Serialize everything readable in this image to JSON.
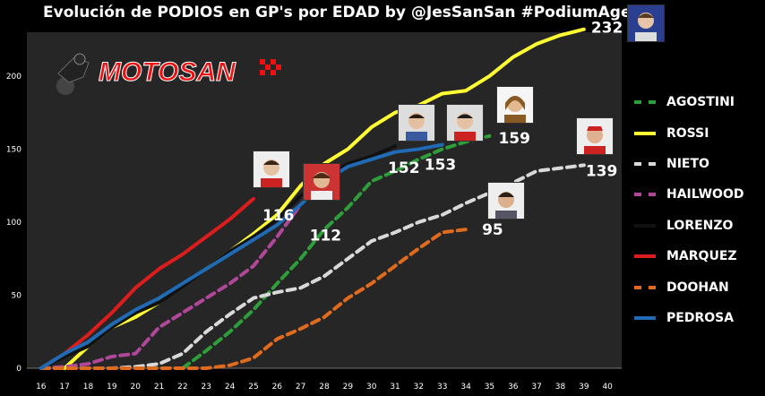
{
  "title": "Evolución de PODIOS en GP's por EDAD by @JesSanSan #PodiumAge",
  "logo_text": "MOTOSAN",
  "chart_data": {
    "type": "line",
    "title": "Evolución de PODIOS en GP's por EDAD by @JesSanSan #PodiumAge",
    "xlabel": "",
    "ylabel": "",
    "x": [
      16,
      17,
      18,
      19,
      20,
      21,
      22,
      23,
      24,
      25,
      26,
      27,
      28,
      29,
      30,
      31,
      32,
      33,
      34,
      35,
      36,
      37,
      38,
      39,
      40
    ],
    "xlim": [
      16,
      40
    ],
    "ylim": [
      0,
      230
    ],
    "yticks": [
      0,
      50,
      100,
      150,
      200
    ],
    "grid": false,
    "legend_position": "right",
    "series": [
      {
        "name": "AGOSTINI",
        "color": "#2e9e3b",
        "dashed": true,
        "x": [
          22,
          23,
          24,
          25,
          26,
          27,
          28,
          29,
          30,
          31,
          32,
          33,
          34,
          35
        ],
        "y": [
          0,
          12,
          25,
          40,
          58,
          75,
          95,
          110,
          128,
          135,
          143,
          150,
          155,
          159
        ]
      },
      {
        "name": "ROSSI",
        "color": "#ffff33",
        "dashed": false,
        "x": [
          17,
          18,
          19,
          20,
          21,
          22,
          23,
          24,
          25,
          26,
          27,
          28,
          29,
          30,
          31,
          32,
          33,
          34,
          35,
          36,
          37,
          38,
          39
        ],
        "y": [
          0,
          15,
          28,
          35,
          45,
          57,
          68,
          80,
          92,
          105,
          125,
          140,
          150,
          165,
          175,
          180,
          188,
          190,
          200,
          213,
          222,
          228,
          232
        ]
      },
      {
        "name": "NIETO",
        "color": "#d9d9d9",
        "dashed": true,
        "x": [
          16,
          17,
          18,
          19,
          20,
          21,
          22,
          23,
          24,
          25,
          26,
          27,
          28,
          29,
          30,
          31,
          32,
          33,
          34,
          35,
          36,
          37,
          38,
          39
        ],
        "y": [
          0,
          0,
          0,
          0,
          1,
          3,
          10,
          25,
          37,
          48,
          52,
          55,
          63,
          75,
          87,
          93,
          100,
          105,
          113,
          120,
          127,
          135,
          137,
          139
        ]
      },
      {
        "name": "HAILWOOD",
        "color": "#b0479a",
        "dashed": true,
        "x": [
          16,
          17,
          18,
          19,
          20,
          21,
          22,
          23,
          24,
          25,
          26,
          27
        ],
        "y": [
          0,
          1,
          3,
          8,
          10,
          28,
          38,
          48,
          58,
          70,
          90,
          112
        ]
      },
      {
        "name": "LORENZO",
        "color": "#1a1a1a",
        "dashed": false,
        "x": [
          16,
          17,
          18,
          19,
          20,
          21,
          22,
          23,
          24,
          25,
          26,
          27,
          28,
          29,
          30,
          31
        ],
        "y": [
          0,
          8,
          15,
          28,
          38,
          45,
          56,
          68,
          80,
          90,
          102,
          118,
          130,
          140,
          145,
          152
        ]
      },
      {
        "name": "MARQUEZ",
        "color": "#dd1c1c",
        "dashed": false,
        "x": [
          16,
          17,
          18,
          19,
          20,
          21,
          22,
          23,
          24,
          25
        ],
        "y": [
          0,
          10,
          23,
          38,
          55,
          68,
          78,
          90,
          102,
          116
        ]
      },
      {
        "name": "DOOHAN",
        "color": "#e06a1d",
        "dashed": true,
        "x": [
          16,
          17,
          18,
          19,
          20,
          21,
          22,
          23,
          24,
          25,
          26,
          27,
          28,
          29,
          30,
          31,
          32,
          33,
          34
        ],
        "y": [
          0,
          0,
          0,
          0,
          0,
          0,
          0,
          0,
          2,
          7,
          20,
          27,
          35,
          48,
          58,
          70,
          82,
          93,
          95
        ]
      },
      {
        "name": "PEDROSA",
        "color": "#1f6bb5",
        "dashed": false,
        "x": [
          16,
          17,
          18,
          19,
          20,
          21,
          22,
          23,
          24,
          25,
          26,
          27,
          28,
          29,
          30,
          31,
          32,
          33
        ],
        "y": [
          0,
          10,
          18,
          30,
          40,
          48,
          58,
          68,
          78,
          88,
          98,
          112,
          128,
          138,
          143,
          148,
          150,
          153
        ]
      }
    ],
    "final_labels": [
      {
        "series": "ROSSI",
        "text": "232"
      },
      {
        "series": "AGOSTINI",
        "text": "159"
      },
      {
        "series": "PEDROSA",
        "text": "153"
      },
      {
        "series": "LORENZO",
        "text": "152"
      },
      {
        "series": "NIETO",
        "text": "139"
      },
      {
        "series": "MARQUEZ",
        "text": "116"
      },
      {
        "series": "HAILWOOD",
        "text": "112"
      },
      {
        "series": "DOOHAN",
        "text": "95"
      }
    ]
  }
}
